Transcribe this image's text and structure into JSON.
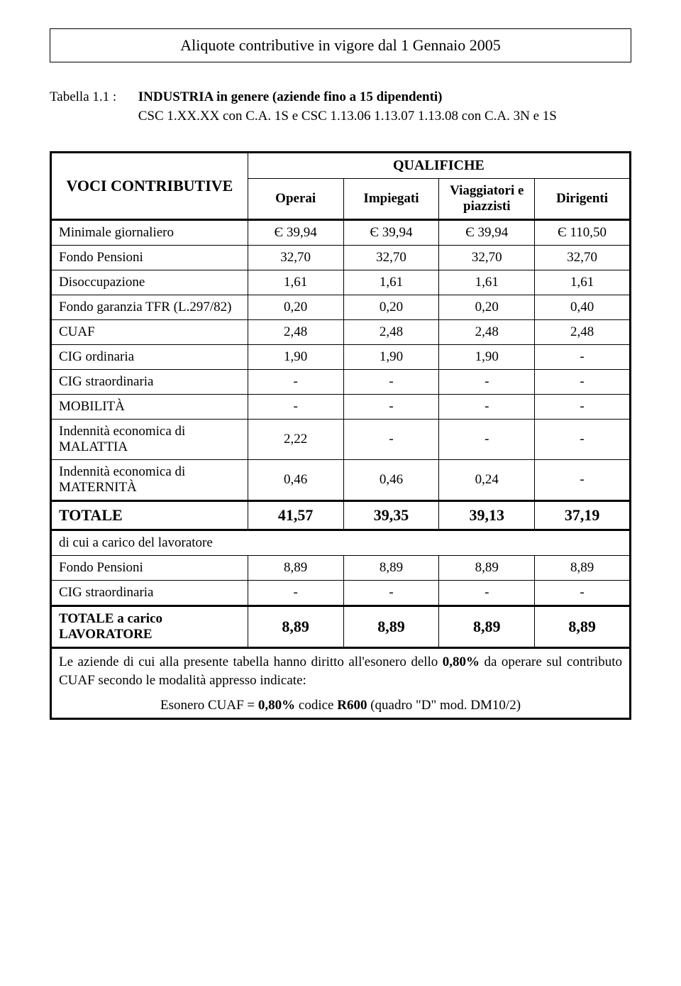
{
  "colors": {
    "text": "#000000",
    "background": "#ffffff",
    "border": "#000000"
  },
  "typography": {
    "font_family": "Times New Roman",
    "title_fontsize": 22,
    "body_fontsize": 19,
    "total_fontsize": 22
  },
  "title": "Aliquote contributive in vigore dal 1 Gennaio 2005",
  "intro": {
    "tabella_label": "Tabella 1.1 :",
    "line1": "INDUSTRIA in genere (aziende fino a 15 dipendenti)",
    "line2": "CSC 1.XX.XX con C.A. 1S e CSC 1.13.06 1.13.07 1.13.08 con C.A. 3N e 1S"
  },
  "headers": {
    "voci": "VOCI CONTRIBUTIVE",
    "qualifiche": "QUALIFICHE",
    "cols": [
      "Operai",
      "Impiegati",
      "Viaggiatori e piazzisti",
      "Dirigenti"
    ]
  },
  "rows": [
    {
      "label": "Minimale giornaliero",
      "vals": [
        "Є 39,94",
        "Є 39,94",
        "Є 39,94",
        "Є 110,50"
      ],
      "kind": "sep"
    },
    {
      "label": "Fondo Pensioni",
      "vals": [
        "32,70",
        "32,70",
        "32,70",
        "32,70"
      ],
      "kind": "row"
    },
    {
      "label": "Disoccupazione",
      "vals": [
        "1,61",
        "1,61",
        "1,61",
        "1,61"
      ],
      "kind": "row"
    },
    {
      "label": "Fondo garanzia TFR (L.297/82)",
      "vals": [
        "0,20",
        "0,20",
        "0,20",
        "0,40"
      ],
      "kind": "row"
    },
    {
      "label": "CUAF",
      "vals": [
        "2,48",
        "2,48",
        "2,48",
        "2,48"
      ],
      "kind": "row"
    },
    {
      "label": "CIG ordinaria",
      "vals": [
        "1,90",
        "1,90",
        "1,90",
        "-"
      ],
      "kind": "row"
    },
    {
      "label": "CIG straordinaria",
      "vals": [
        "-",
        "-",
        "-",
        "-"
      ],
      "kind": "row"
    },
    {
      "label": "MOBILITÀ",
      "vals": [
        "-",
        "-",
        "-",
        "-"
      ],
      "kind": "row"
    },
    {
      "label": "Indennità economica di MALATTIA",
      "vals": [
        "2,22",
        "-",
        "-",
        "-"
      ],
      "kind": "row"
    },
    {
      "label": "Indennità economica di MATERNITÀ",
      "vals": [
        "0,46",
        "0,46",
        "0,24",
        "-"
      ],
      "kind": "row"
    },
    {
      "label": "TOTALE",
      "vals": [
        "41,57",
        "39,35",
        "39,13",
        "37,19"
      ],
      "kind": "total"
    },
    {
      "label": "di cui a carico del lavoratore",
      "vals": [],
      "kind": "section"
    },
    {
      "label": "Fondo Pensioni",
      "vals": [
        "8,89",
        "8,89",
        "8,89",
        "8,89"
      ],
      "kind": "row"
    },
    {
      "label": "CIG straordinaria",
      "vals": [
        "-",
        "-",
        "-",
        "-"
      ],
      "kind": "row"
    },
    {
      "label": "TOTALE a carico LAVORATORE",
      "vals": [
        "8,89",
        "8,89",
        "8,89",
        "8,89"
      ],
      "kind": "total"
    }
  ],
  "note": {
    "p1_a": "Le aziende di cui alla presente tabella hanno diritto all'esonero dello ",
    "p1_b": "0,80%",
    "p1_c": " da operare sul contributo CUAF secondo le modalità appresso indicate:",
    "p2_a": "Esonero CUAF = ",
    "p2_b": "0,80%",
    "p2_c": " codice ",
    "p2_d": "R600",
    "p2_e": " (quadro \"D\" mod. DM10/2)"
  }
}
